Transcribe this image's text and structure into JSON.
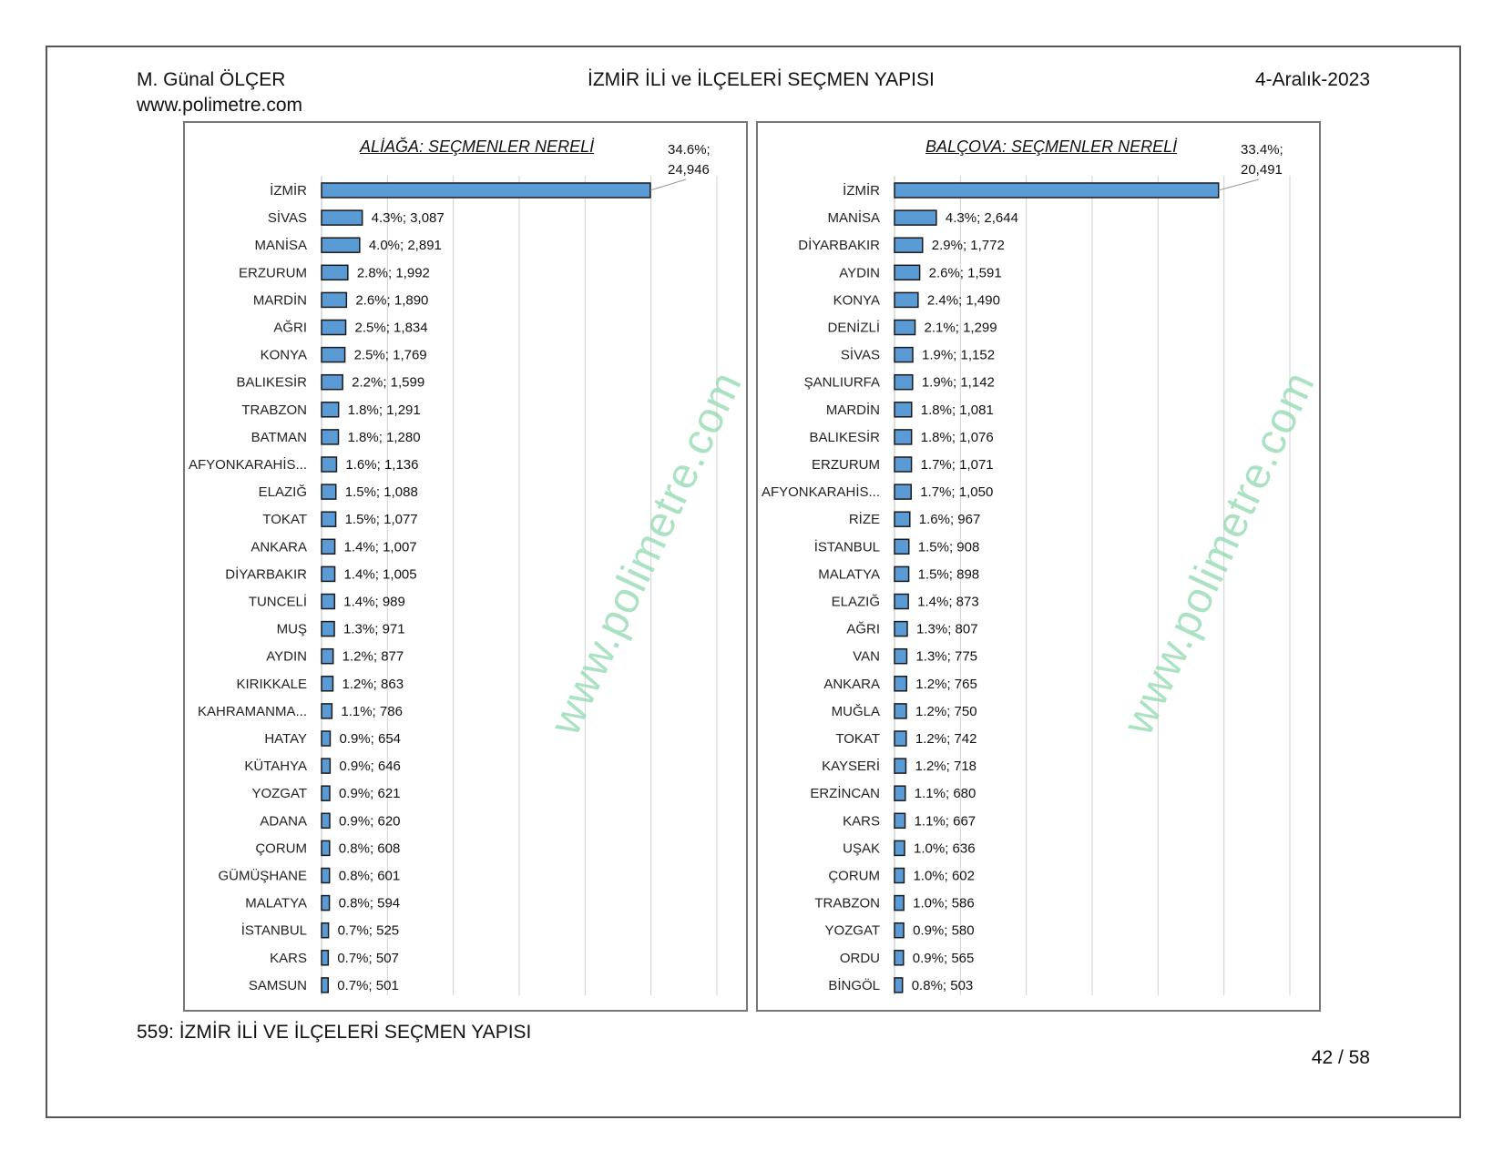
{
  "header": {
    "author": "M. Günal ÖLÇER",
    "website": "www.polimetre.com",
    "title": "İZMİR İLİ ve İLÇELERİ SEÇMEN YAPISI",
    "date": "4-Aralık-2023"
  },
  "footer": {
    "caption": "559: İZMİR İLİ VE İLÇELERİ SEÇMEN YAPISI",
    "page": "42 / 58"
  },
  "watermark": "www.polimetre.com",
  "colors": {
    "bar": "#5b9bd5",
    "bar_border": "#1a1a1a",
    "grid": "#d0d0d0"
  },
  "chart_data": [
    {
      "type": "bar",
      "orientation": "horizontal",
      "title": "ALİAĞA: SEÇMENLER NERELİ",
      "categories": [
        "İZMİR",
        "SİVAS",
        "MANİSA",
        "ERZURUM",
        "MARDİN",
        "AĞRI",
        "KONYA",
        "BALIKESİR",
        "TRABZON",
        "BATMAN",
        "AFYONKARAHİS...",
        "ELAZIĞ",
        "TOKAT",
        "ANKARA",
        "DİYARBAKIR",
        "TUNCELİ",
        "MUŞ",
        "AYDIN",
        "KIRIKKALE",
        "KAHRAMANMA...",
        "HATAY",
        "KÜTAHYA",
        "YOZGAT",
        "ADANA",
        "ÇORUM",
        "GÜMÜŞHANE",
        "MALATYA",
        "İSTANBUL",
        "KARS",
        "SAMSUN"
      ],
      "percent": [
        34.6,
        4.3,
        4.0,
        2.8,
        2.6,
        2.5,
        2.5,
        2.2,
        1.8,
        1.8,
        1.6,
        1.5,
        1.5,
        1.4,
        1.4,
        1.4,
        1.3,
        1.2,
        1.2,
        1.1,
        0.9,
        0.9,
        0.9,
        0.9,
        0.8,
        0.8,
        0.8,
        0.7,
        0.7,
        0.7
      ],
      "values": [
        24946,
        3087,
        2891,
        1992,
        1890,
        1834,
        1769,
        1599,
        1291,
        1280,
        1136,
        1088,
        1077,
        1007,
        1005,
        989,
        971,
        877,
        863,
        786,
        654,
        646,
        621,
        620,
        608,
        601,
        594,
        525,
        507,
        501
      ],
      "labels": [
        "34.6%; 24,946",
        "4.3%; 3,087",
        "4.0%; 2,891",
        "2.8%; 1,992",
        "2.6%; 1,890",
        "2.5%; 1,834",
        "2.5%; 1,769",
        "2.2%; 1,599",
        "1.8%; 1,291",
        "1.8%; 1,280",
        "1.6%; 1,136",
        "1.5%; 1,088",
        "1.5%; 1,077",
        "1.4%; 1,007",
        "1.4%; 1,005",
        "1.4%; 989",
        "1.3%; 971",
        "1.2%; 877",
        "1.2%; 863",
        "1.1%; 786",
        "0.9%; 654",
        "0.9%; 646",
        "0.9%; 621",
        "0.9%; 620",
        "0.8%; 608",
        "0.8%; 601",
        "0.8%; 594",
        "0.7%; 525",
        "0.7%; 507",
        "0.7%; 501"
      ],
      "top_label_lines": [
        "34.6%;",
        "24,946"
      ],
      "xlim": [
        0,
        30000
      ],
      "grid": true
    },
    {
      "type": "bar",
      "orientation": "horizontal",
      "title": "BALÇOVA: SEÇMENLER NERELİ",
      "categories": [
        "İZMİR",
        "MANİSA",
        "DİYARBAKIR",
        "AYDIN",
        "KONYA",
        "DENİZLİ",
        "SİVAS",
        "ŞANLIURFA",
        "MARDİN",
        "BALIKESİR",
        "ERZURUM",
        "AFYONKARAHİS...",
        "RİZE",
        "İSTANBUL",
        "MALATYA",
        "ELAZIĞ",
        "AĞRI",
        "VAN",
        "ANKARA",
        "MUĞLA",
        "TOKAT",
        "KAYSERİ",
        "ERZİNCAN",
        "KARS",
        "UŞAK",
        "ÇORUM",
        "TRABZON",
        "YOZGAT",
        "ORDU",
        "BİNGÖL"
      ],
      "percent": [
        33.4,
        4.3,
        2.9,
        2.6,
        2.4,
        2.1,
        1.9,
        1.9,
        1.8,
        1.8,
        1.7,
        1.7,
        1.6,
        1.5,
        1.5,
        1.4,
        1.3,
        1.3,
        1.2,
        1.2,
        1.2,
        1.2,
        1.1,
        1.1,
        1.0,
        1.0,
        1.0,
        0.9,
        0.9,
        0.8
      ],
      "values": [
        20491,
        2644,
        1772,
        1591,
        1490,
        1299,
        1152,
        1142,
        1081,
        1076,
        1071,
        1050,
        967,
        908,
        898,
        873,
        807,
        775,
        765,
        750,
        742,
        718,
        680,
        667,
        636,
        602,
        586,
        580,
        565,
        503
      ],
      "labels": [
        "33.4%; 20,491",
        "4.3%; 2,644",
        "2.9%; 1,772",
        "2.6%; 1,591",
        "2.4%; 1,490",
        "2.1%; 1,299",
        "1.9%; 1,152",
        "1.9%; 1,142",
        "1.8%; 1,081",
        "1.8%; 1,076",
        "1.7%; 1,071",
        "1.7%; 1,050",
        "1.6%; 967",
        "1.5%; 908",
        "1.5%; 898",
        "1.4%; 873",
        "1.3%; 807",
        "1.3%; 775",
        "1.2%; 765",
        "1.2%; 750",
        "1.2%; 742",
        "1.2%; 718",
        "1.1%; 680",
        "1.1%; 667",
        "1.0%; 636",
        "1.0%; 602",
        "1.0%; 586",
        "0.9%; 580",
        "0.9%; 565",
        "0.8%; 503"
      ],
      "top_label_lines": [
        "33.4%;",
        "20,491"
      ],
      "xlim": [
        0,
        25000
      ],
      "grid": true
    }
  ]
}
